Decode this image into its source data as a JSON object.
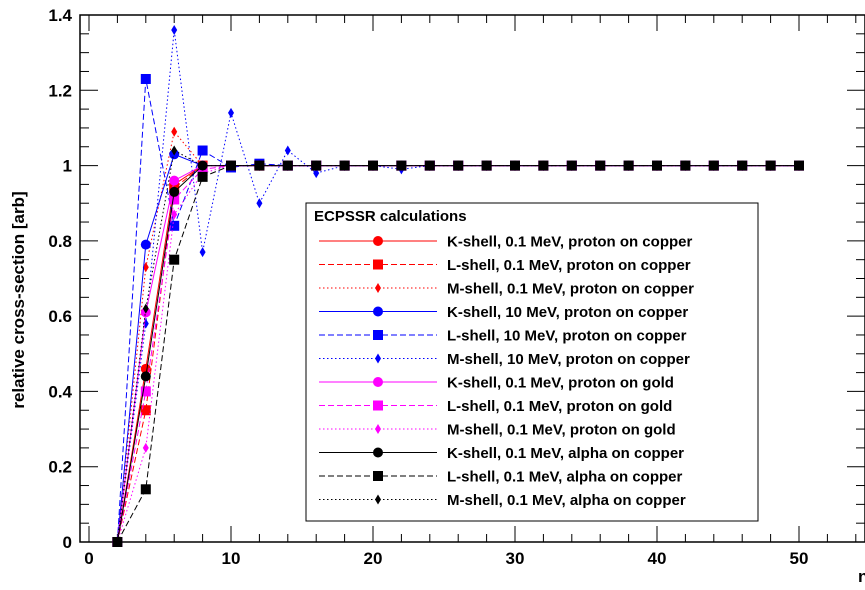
{
  "chart_data": {
    "type": "line",
    "ylabel": "relative cross-section [arb]",
    "xlabel_visible": "n",
    "xlim": [
      0,
      55
    ],
    "ylim": [
      0,
      1.4
    ],
    "x_ticks": [
      "0",
      "10",
      "20",
      "30",
      "40",
      "50"
    ],
    "y_ticks": [
      "0",
      "0.2",
      "0.4",
      "0.6",
      "0.8",
      "1",
      "1.2",
      "1.4"
    ],
    "legend": {
      "title": "ECPSSR calculations",
      "placement": "center-right"
    },
    "series": [
      {
        "name": "K-shell, 0.1 MeV, proton on copper",
        "color": "#ff0000",
        "dash": "solid",
        "marker": "circle",
        "x": [
          2,
          4,
          6,
          8,
          10,
          12,
          14,
          16,
          18,
          20,
          22,
          24,
          26,
          28,
          30,
          32,
          34,
          36,
          38,
          40,
          42,
          44,
          46,
          48,
          50
        ],
        "y": [
          0,
          0.46,
          0.95,
          1,
          1,
          1,
          1,
          1,
          1,
          1,
          1,
          1,
          1,
          1,
          1,
          1,
          1,
          1,
          1,
          1,
          1,
          1,
          1,
          1,
          1
        ]
      },
      {
        "name": "L-shell, 0.1 MeV, proton on copper",
        "color": "#ff0000",
        "dash": "dashed",
        "marker": "square",
        "x": [
          2,
          4,
          6,
          8,
          10,
          12,
          14,
          16,
          18,
          20,
          22,
          24,
          26,
          28,
          30,
          32,
          34,
          36,
          38,
          40,
          42,
          44,
          46,
          48,
          50
        ],
        "y": [
          0,
          0.35,
          0.94,
          1,
          1,
          1,
          1,
          1,
          1,
          1,
          1,
          1,
          1,
          1,
          1,
          1,
          1,
          1,
          1,
          1,
          1,
          1,
          1,
          1,
          1
        ]
      },
      {
        "name": "M-shell, 0.1 MeV, proton on copper",
        "color": "#ff0000",
        "dash": "dotted",
        "marker": "diamond",
        "x": [
          2,
          4,
          6,
          8,
          10,
          12,
          14,
          16,
          18,
          20,
          22,
          24,
          26,
          28,
          30,
          32,
          34,
          36,
          38,
          40,
          42,
          44,
          46,
          48,
          50
        ],
        "y": [
          0,
          0.73,
          1.09,
          1,
          1,
          1,
          1,
          1,
          1,
          1,
          1,
          1,
          1,
          1,
          1,
          1,
          1,
          1,
          1,
          1,
          1,
          1,
          1,
          1,
          1
        ]
      },
      {
        "name": "K-shell, 10 MeV, proton on copper",
        "color": "#0000ff",
        "dash": "solid",
        "marker": "circle",
        "x": [
          2,
          4,
          6,
          8,
          10,
          12,
          14,
          16,
          18,
          20,
          22,
          24,
          26,
          28,
          30,
          32,
          34,
          36,
          38,
          40,
          42,
          44,
          46,
          48,
          50
        ],
        "y": [
          0,
          0.79,
          1.03,
          1,
          1,
          1,
          1,
          1,
          1,
          1,
          1,
          1,
          1,
          1,
          1,
          1,
          1,
          1,
          1,
          1,
          1,
          1,
          1,
          1,
          1
        ]
      },
      {
        "name": "L-shell, 10 MeV, proton on copper",
        "color": "#0000ff",
        "dash": "dashed",
        "marker": "square",
        "x": [
          2,
          4,
          6,
          8,
          10,
          12,
          14,
          16,
          18,
          20,
          22,
          24,
          26,
          28,
          30,
          32,
          34,
          36,
          38,
          40,
          42,
          44,
          46,
          48,
          50
        ],
        "y": [
          0,
          1.23,
          0.84,
          1.04,
          0.995,
          1.005,
          1,
          1,
          1,
          1,
          1,
          1,
          1,
          1,
          1,
          1,
          1,
          1,
          1,
          1,
          1,
          1,
          1,
          1,
          1
        ]
      },
      {
        "name": "M-shell, 10 MeV, proton on copper",
        "color": "#0000ff",
        "dash": "dotted",
        "marker": "diamond",
        "x": [
          2,
          4,
          6,
          8,
          10,
          12,
          14,
          16,
          18,
          20,
          22,
          24,
          26,
          28,
          30,
          32,
          34,
          36,
          38,
          40,
          42,
          44,
          46,
          48,
          50
        ],
        "y": [
          0,
          0.58,
          1.36,
          0.77,
          1.14,
          0.9,
          1.04,
          0.98,
          1,
          1,
          0.99,
          1,
          1,
          1,
          1,
          1,
          1,
          1,
          1,
          1,
          1,
          1,
          1,
          1,
          1
        ]
      },
      {
        "name": "K-shell, 0.1 MeV, proton on gold",
        "color": "#ff00ff",
        "dash": "solid",
        "marker": "circle",
        "x": [
          2,
          4,
          6,
          8,
          10,
          12,
          14,
          16,
          18,
          20,
          22,
          24,
          26,
          28,
          30,
          32,
          34,
          36,
          38,
          40,
          42,
          44,
          46,
          48,
          50
        ],
        "y": [
          0,
          0.61,
          0.96,
          1,
          1,
          1,
          1,
          1,
          1,
          1,
          1,
          1,
          1,
          1,
          1,
          1,
          1,
          1,
          1,
          1,
          1,
          1,
          1,
          1,
          1
        ]
      },
      {
        "name": "L-shell, 0.1 MeV, proton on gold",
        "color": "#ff00ff",
        "dash": "dashed",
        "marker": "square",
        "x": [
          2,
          4,
          6,
          8,
          10,
          12,
          14,
          16,
          18,
          20,
          22,
          24,
          26,
          28,
          30,
          32,
          34,
          36,
          38,
          40,
          42,
          44,
          46,
          48,
          50
        ],
        "y": [
          0,
          0.4,
          0.91,
          0.99,
          1,
          1,
          1,
          1,
          1,
          1,
          1,
          1,
          1,
          1,
          1,
          1,
          1,
          1,
          1,
          1,
          1,
          1,
          1,
          1,
          1
        ]
      },
      {
        "name": "M-shell, 0.1 MeV, proton on gold",
        "color": "#ff00ff",
        "dash": "dotted",
        "marker": "diamond",
        "x": [
          2,
          4,
          6,
          8,
          10,
          12,
          14,
          16,
          18,
          20,
          22,
          24,
          26,
          28,
          30,
          32,
          34,
          36,
          38,
          40,
          42,
          44,
          46,
          48,
          50
        ],
        "y": [
          0,
          0.25,
          0.87,
          0.98,
          1,
          1,
          1,
          1,
          1,
          1,
          1,
          1,
          1,
          1,
          1,
          1,
          1,
          1,
          1,
          1,
          1,
          1,
          1,
          1,
          1
        ]
      },
      {
        "name": "K-shell, 0.1 MeV, alpha on copper",
        "color": "#000000",
        "dash": "solid",
        "marker": "circle",
        "x": [
          2,
          4,
          6,
          8,
          10,
          12,
          14,
          16,
          18,
          20,
          22,
          24,
          26,
          28,
          30,
          32,
          34,
          36,
          38,
          40,
          42,
          44,
          46,
          48,
          50
        ],
        "y": [
          0,
          0.44,
          0.93,
          1,
          1,
          1,
          1,
          1,
          1,
          1,
          1,
          1,
          1,
          1,
          1,
          1,
          1,
          1,
          1,
          1,
          1,
          1,
          1,
          1,
          1
        ]
      },
      {
        "name": "L-shell, 0.1 MeV, alpha on copper",
        "color": "#000000",
        "dash": "dashed",
        "marker": "square",
        "x": [
          2,
          4,
          6,
          8,
          10,
          12,
          14,
          16,
          18,
          20,
          22,
          24,
          26,
          28,
          30,
          32,
          34,
          36,
          38,
          40,
          42,
          44,
          46,
          48,
          50
        ],
        "y": [
          0,
          0.14,
          0.75,
          0.97,
          1,
          1,
          1,
          1,
          1,
          1,
          1,
          1,
          1,
          1,
          1,
          1,
          1,
          1,
          1,
          1,
          1,
          1,
          1,
          1,
          1
        ]
      },
      {
        "name": "M-shell, 0.1 MeV, alpha on copper",
        "color": "#000000",
        "dash": "dotted",
        "marker": "diamond",
        "x": [
          2,
          4,
          6,
          8,
          10,
          12,
          14,
          16,
          18,
          20,
          22,
          24,
          26,
          28,
          30,
          32,
          34,
          36,
          38,
          40,
          42,
          44,
          46,
          48,
          50
        ],
        "y": [
          0,
          0.62,
          1.04,
          1,
          1,
          1,
          1,
          1,
          1,
          1,
          1,
          1,
          1,
          1,
          1,
          1,
          1,
          1,
          1,
          1,
          1,
          1,
          1,
          1,
          1
        ]
      }
    ]
  }
}
